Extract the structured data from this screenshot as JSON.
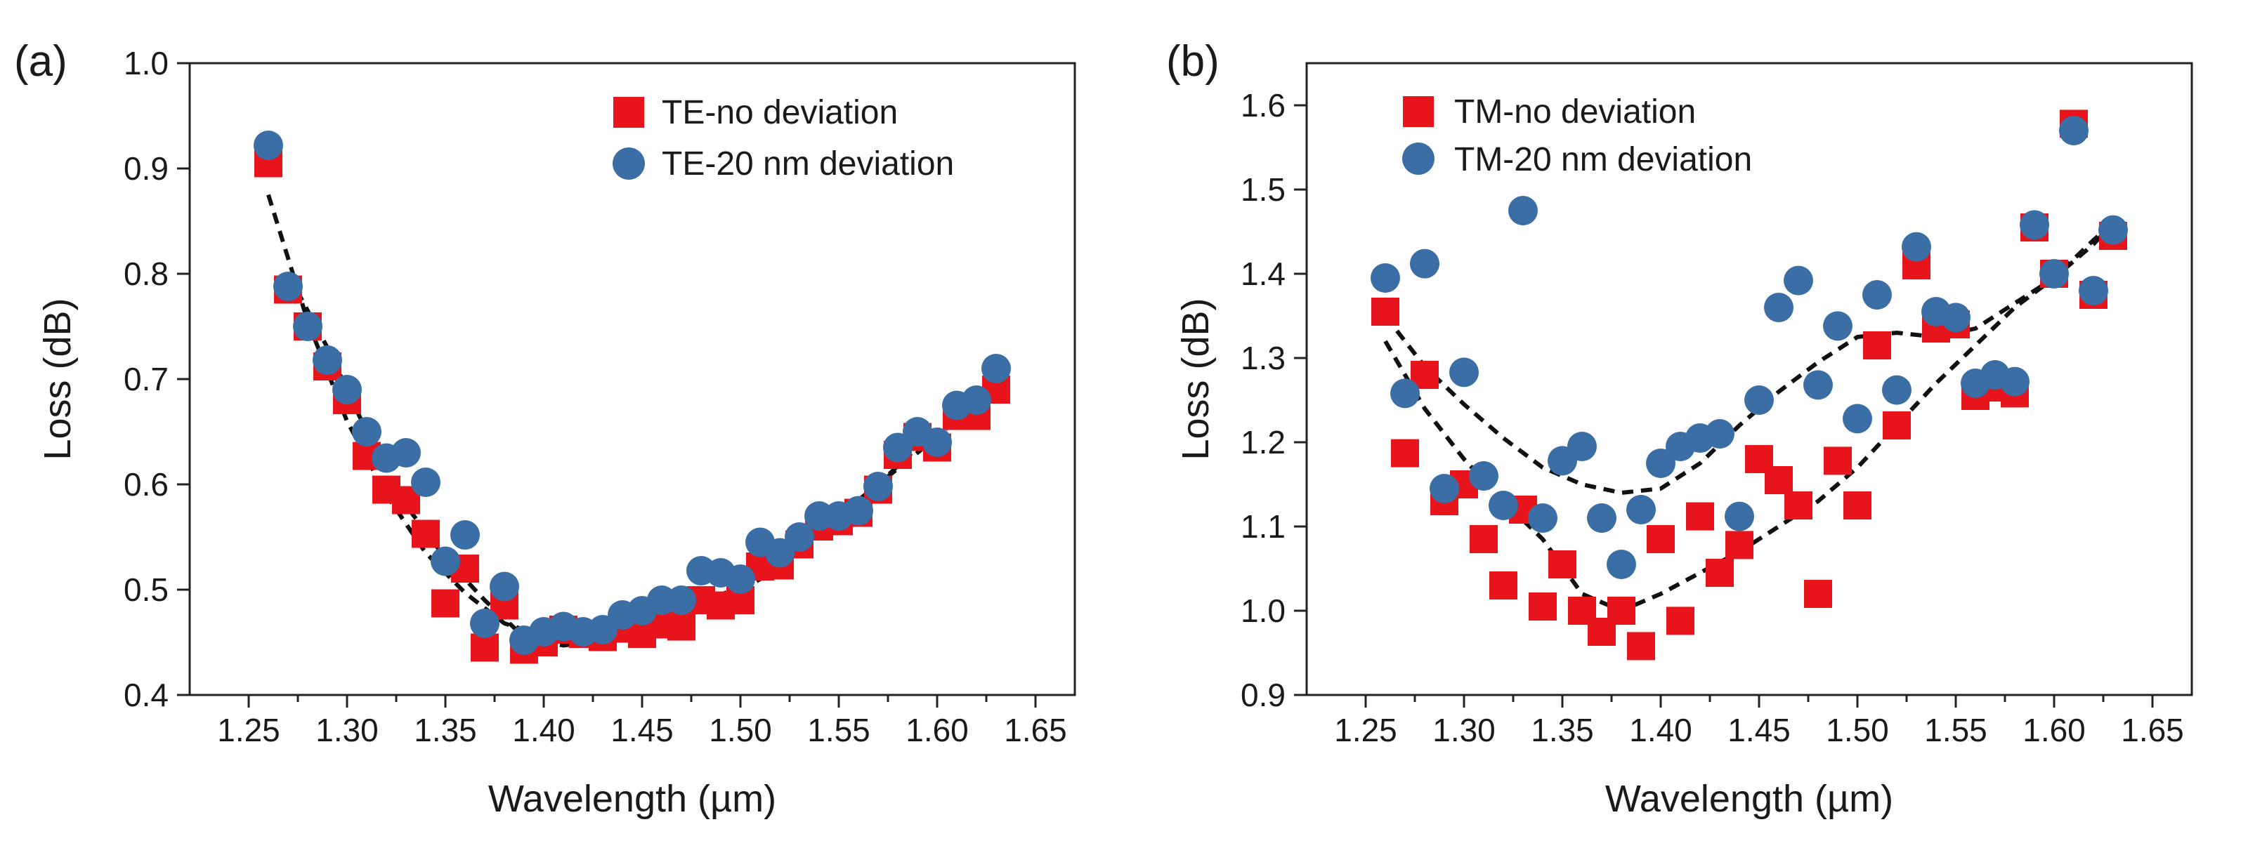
{
  "chart_data": [
    {
      "type": "scatter",
      "panel_label": "(a)",
      "xlabel": "Wavelength (µm)",
      "ylabel": "Loss (dB)",
      "xlim": [
        1.22,
        1.67
      ],
      "ylim": [
        0.4,
        1.0
      ],
      "xticks": [
        "1.25",
        "1.30",
        "1.35",
        "1.40",
        "1.45",
        "1.50",
        "1.55",
        "1.60",
        "1.65"
      ],
      "yticks": [
        "0.4",
        "0.5",
        "0.6",
        "0.7",
        "0.8",
        "0.9",
        "1.0"
      ],
      "legend_position": "top-right",
      "series": [
        {
          "name": "TE-no deviation",
          "marker": "square",
          "color": "#e8141c",
          "x": [
            1.26,
            1.27,
            1.28,
            1.29,
            1.3,
            1.31,
            1.32,
            1.33,
            1.34,
            1.35,
            1.36,
            1.37,
            1.38,
            1.39,
            1.4,
            1.41,
            1.42,
            1.43,
            1.44,
            1.45,
            1.46,
            1.47,
            1.48,
            1.49,
            1.5,
            1.51,
            1.52,
            1.53,
            1.54,
            1.55,
            1.56,
            1.57,
            1.58,
            1.59,
            1.6,
            1.61,
            1.62,
            1.63
          ],
          "y": [
            0.905,
            0.785,
            0.75,
            0.712,
            0.68,
            0.627,
            0.595,
            0.585,
            0.553,
            0.487,
            0.52,
            0.445,
            0.485,
            0.443,
            0.45,
            0.462,
            0.458,
            0.455,
            0.463,
            0.458,
            0.467,
            0.465,
            0.49,
            0.485,
            0.49,
            0.522,
            0.523,
            0.543,
            0.56,
            0.565,
            0.573,
            0.595,
            0.628,
            0.645,
            0.635,
            0.665,
            0.665,
            0.69
          ]
        },
        {
          "name": "TE-20 nm deviation",
          "marker": "circle",
          "color": "#3a6ea5",
          "x": [
            1.26,
            1.27,
            1.28,
            1.29,
            1.3,
            1.31,
            1.32,
            1.33,
            1.34,
            1.35,
            1.36,
            1.37,
            1.38,
            1.39,
            1.4,
            1.41,
            1.42,
            1.43,
            1.44,
            1.45,
            1.46,
            1.47,
            1.48,
            1.49,
            1.5,
            1.51,
            1.52,
            1.53,
            1.54,
            1.55,
            1.56,
            1.57,
            1.58,
            1.59,
            1.6,
            1.61,
            1.62,
            1.63
          ],
          "y": [
            0.922,
            0.788,
            0.75,
            0.718,
            0.69,
            0.65,
            0.625,
            0.63,
            0.602,
            0.527,
            0.552,
            0.468,
            0.503,
            0.452,
            0.46,
            0.465,
            0.46,
            0.462,
            0.476,
            0.48,
            0.49,
            0.49,
            0.518,
            0.516,
            0.51,
            0.545,
            0.535,
            0.55,
            0.57,
            0.57,
            0.575,
            0.598,
            0.635,
            0.65,
            0.64,
            0.675,
            0.68,
            0.71
          ]
        }
      ],
      "fit_curves": [
        {
          "name": "fit",
          "x": [
            1.26,
            1.28,
            1.3,
            1.32,
            1.34,
            1.36,
            1.38,
            1.4,
            1.42,
            1.44,
            1.46,
            1.48,
            1.5,
            1.52,
            1.54,
            1.56,
            1.58,
            1.6,
            1.62,
            1.63
          ],
          "y": [
            0.875,
            0.755,
            0.66,
            0.59,
            0.535,
            0.497,
            0.468,
            0.456,
            0.455,
            0.46,
            0.47,
            0.484,
            0.505,
            0.53,
            0.555,
            0.585,
            0.615,
            0.645,
            0.68,
            0.695
          ]
        },
        {
          "name": "fit",
          "x": [
            1.27,
            1.29,
            1.31,
            1.33,
            1.35,
            1.37,
            1.39,
            1.41,
            1.43,
            1.45,
            1.47,
            1.49,
            1.51,
            1.53,
            1.55,
            1.57,
            1.59,
            1.61,
            1.63
          ],
          "y": [
            0.8,
            0.73,
            0.65,
            0.58,
            0.53,
            0.49,
            0.455,
            0.447,
            0.452,
            0.462,
            0.475,
            0.49,
            0.51,
            0.54,
            0.57,
            0.6,
            0.635,
            0.66,
            0.7
          ]
        }
      ]
    },
    {
      "type": "scatter",
      "panel_label": "(b)",
      "xlabel": "Wavelength (µm)",
      "ylabel": "Loss (dB)",
      "xlim": [
        1.22,
        1.67
      ],
      "ylim": [
        0.9,
        1.65
      ],
      "xticks": [
        "1.25",
        "1.30",
        "1.35",
        "1.40",
        "1.45",
        "1.50",
        "1.55",
        "1.60",
        "1.65"
      ],
      "yticks": [
        "0.9",
        "1.0",
        "1.1",
        "1.2",
        "1.3",
        "1.4",
        "1.5",
        "1.6"
      ],
      "legend_position": "top-left",
      "series": [
        {
          "name": "TM-no deviation",
          "marker": "square",
          "color": "#e8141c",
          "x": [
            1.26,
            1.27,
            1.28,
            1.29,
            1.3,
            1.31,
            1.32,
            1.33,
            1.34,
            1.35,
            1.36,
            1.37,
            1.38,
            1.39,
            1.4,
            1.41,
            1.42,
            1.43,
            1.44,
            1.45,
            1.46,
            1.47,
            1.48,
            1.49,
            1.5,
            1.51,
            1.52,
            1.53,
            1.54,
            1.55,
            1.56,
            1.57,
            1.58,
            1.59,
            1.6,
            1.61,
            1.62,
            1.63
          ],
          "y": [
            1.355,
            1.187,
            1.28,
            1.13,
            1.15,
            1.085,
            1.03,
            1.12,
            1.005,
            1.055,
            1.0,
            0.975,
            1.0,
            0.958,
            1.085,
            0.988,
            1.112,
            1.045,
            1.078,
            1.18,
            1.155,
            1.125,
            1.02,
            1.178,
            1.125,
            1.315,
            1.22,
            1.41,
            1.335,
            1.34,
            1.255,
            1.265,
            1.258,
            1.455,
            1.4,
            1.578,
            1.375,
            1.445
          ]
        },
        {
          "name": "TM-20 nm deviation",
          "marker": "circle",
          "color": "#3a6ea5",
          "x": [
            1.26,
            1.27,
            1.28,
            1.29,
            1.3,
            1.31,
            1.32,
            1.33,
            1.34,
            1.35,
            1.36,
            1.37,
            1.38,
            1.39,
            1.4,
            1.41,
            1.42,
            1.43,
            1.44,
            1.45,
            1.46,
            1.47,
            1.48,
            1.49,
            1.5,
            1.51,
            1.52,
            1.53,
            1.54,
            1.55,
            1.56,
            1.57,
            1.58,
            1.59,
            1.6,
            1.61,
            1.62,
            1.63
          ],
          "y": [
            1.395,
            1.258,
            1.412,
            1.145,
            1.283,
            1.16,
            1.125,
            1.475,
            1.11,
            1.178,
            1.195,
            1.11,
            1.055,
            1.12,
            1.175,
            1.195,
            1.205,
            1.21,
            1.112,
            1.25,
            1.36,
            1.392,
            1.268,
            1.338,
            1.228,
            1.375,
            1.262,
            1.432,
            1.355,
            1.348,
            1.27,
            1.28,
            1.272,
            1.458,
            1.4,
            1.57,
            1.38,
            1.452
          ]
        }
      ],
      "fit_curves": [
        {
          "name": "fit",
          "x": [
            1.26,
            1.28,
            1.3,
            1.32,
            1.34,
            1.36,
            1.38,
            1.4,
            1.42,
            1.44,
            1.46,
            1.48,
            1.5,
            1.52,
            1.54,
            1.56,
            1.58,
            1.6,
            1.62,
            1.63
          ],
          "y": [
            1.32,
            1.24,
            1.18,
            1.13,
            1.085,
            1.02,
            1.0,
            1.02,
            1.045,
            1.07,
            1.1,
            1.13,
            1.17,
            1.22,
            1.27,
            1.315,
            1.36,
            1.395,
            1.435,
            1.46
          ]
        },
        {
          "name": "fit",
          "x": [
            1.26,
            1.28,
            1.3,
            1.32,
            1.34,
            1.36,
            1.38,
            1.4,
            1.42,
            1.44,
            1.46,
            1.48,
            1.5,
            1.52,
            1.54,
            1.56,
            1.58,
            1.6,
            1.62,
            1.63
          ],
          "y": [
            1.35,
            1.29,
            1.245,
            1.205,
            1.17,
            1.15,
            1.14,
            1.145,
            1.175,
            1.22,
            1.26,
            1.295,
            1.325,
            1.33,
            1.325,
            1.335,
            1.365,
            1.395,
            1.44,
            1.46
          ]
        }
      ]
    }
  ]
}
